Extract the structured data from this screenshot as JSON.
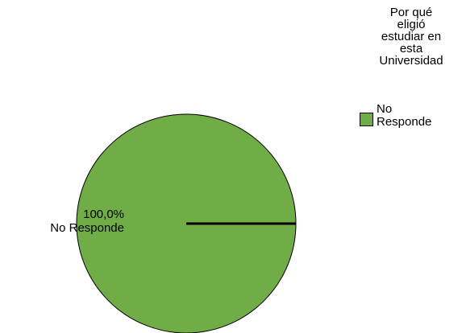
{
  "chart_data": {
    "type": "pie",
    "title": "",
    "legend": {
      "title": "Por qué\neligió\nestudiar en\nesta\nUniversidad",
      "placement": "top-right",
      "entries": [
        "No\nResponde"
      ]
    },
    "slices": [
      {
        "label": "No Responde",
        "percent": 100.0,
        "percent_text": "100,0%",
        "color": "#70ad47"
      }
    ]
  }
}
